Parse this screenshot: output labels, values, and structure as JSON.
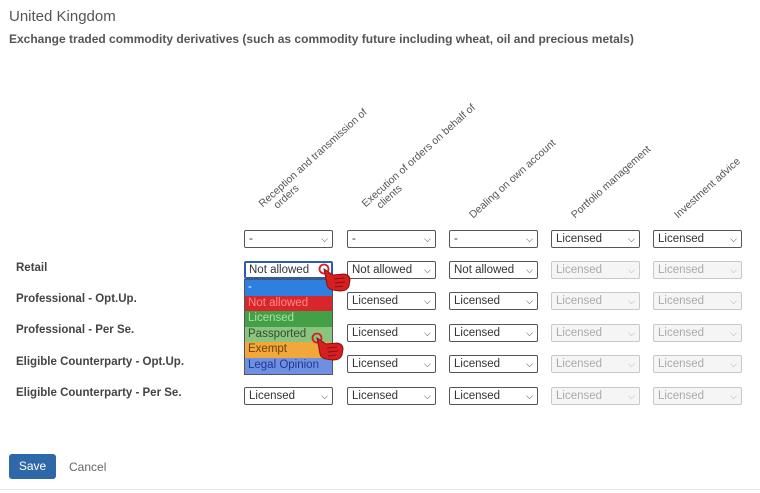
{
  "header": {
    "title": "United Kingdom",
    "subtitle": "Exchange traded commodity derivatives (such as commodity future including wheat, oil and precious metals)"
  },
  "columns": [
    {
      "label_line1": "Reception and transmission of",
      "label_line2": "orders"
    },
    {
      "label_line1": "Execution of orders on behalf of",
      "label_line2": "clients"
    },
    {
      "label_line1": "Dealing on own account",
      "label_line2": ""
    },
    {
      "label_line1": "Portfolio management",
      "label_line2": ""
    },
    {
      "label_line1": "Investment advice",
      "label_line2": ""
    }
  ],
  "header_row": [
    "-",
    "-",
    "-",
    "Licensed",
    "Licensed"
  ],
  "rows": [
    {
      "label": "Retail",
      "values": [
        "Not allowed",
        "Not allowed",
        "Not allowed",
        "Licensed",
        "Licensed"
      ]
    },
    {
      "label": "Professional - Opt.Up.",
      "values": [
        "",
        "Licensed",
        "Licensed",
        "Licensed",
        "Licensed"
      ]
    },
    {
      "label": "Professional - Per Se.",
      "values": [
        "",
        "Licensed",
        "Licensed",
        "Licensed",
        "Licensed"
      ]
    },
    {
      "label": "Eligible Counterparty - Opt.Up.",
      "values": [
        "",
        "Licensed",
        "Licensed",
        "Licensed",
        "Licensed"
      ]
    },
    {
      "label": "Eligible Counterparty - Per Se.",
      "values": [
        "Licensed",
        "Licensed",
        "Licensed",
        "Licensed",
        "Licensed"
      ]
    }
  ],
  "dropdown": {
    "options": [
      {
        "label": "-",
        "bg": "#2f7fe0",
        "color": "#ffffff"
      },
      {
        "label": "Not allowed",
        "bg": "#d9262c",
        "color": "#ff8a8a"
      },
      {
        "label": "Licensed",
        "bg": "#43a047",
        "color": "#a9e0a6"
      },
      {
        "label": "Passported",
        "bg": "#8bc47f",
        "color": "#2f4f2a"
      },
      {
        "label": "Exempt",
        "bg": "#f2a73b",
        "color": "#6b4200"
      },
      {
        "label": "Legal Opinion",
        "bg": "#6f8fe3",
        "color": "#1f3a8f"
      }
    ]
  },
  "footer": {
    "save_label": "Save",
    "cancel_label": "Cancel"
  },
  "colors": {
    "save_bg": "#2e68a8",
    "cursor_red": "#d61f1f"
  }
}
